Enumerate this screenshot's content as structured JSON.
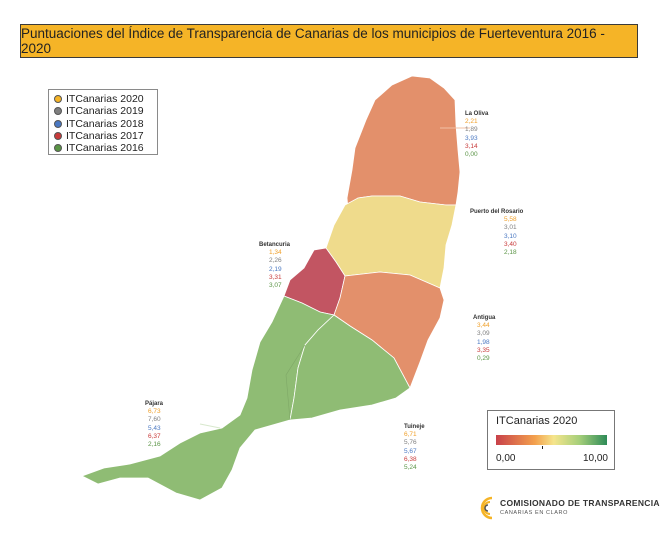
{
  "title": "Puntuaciones del Índice de Transparencia de Canarias de los municipios de Fuerteventura 2016 - 2020",
  "legend": [
    {
      "label": "ITCanarias 2020",
      "color": "#f5b427"
    },
    {
      "label": "ITCanarias 2019",
      "color": "#7f7f7f"
    },
    {
      "label": "ITCanarias 2018",
      "color": "#4a78c2"
    },
    {
      "label": "ITCanarias 2017",
      "color": "#c83a3a"
    },
    {
      "label": "ITCanarias 2016",
      "color": "#5a9445"
    }
  ],
  "series_colors": [
    "#f0a02a",
    "#7f7f7f",
    "#4a78c2",
    "#c83a3a",
    "#5a9445"
  ],
  "municipalities": [
    {
      "name": "La Oliva",
      "values": [
        "2,21",
        "1,89",
        "3,93",
        "3,14",
        "0,00"
      ],
      "fill": "#e3906b"
    },
    {
      "name": "Puerto del Rosario",
      "values": [
        "5,58",
        "3,01",
        "3,10",
        "3,40",
        "2,18"
      ],
      "fill": "#efdb8c"
    },
    {
      "name": "Betancuria",
      "values": [
        "1,34",
        "2,26",
        "2,19",
        "3,31",
        "3,07"
      ],
      "fill": "#c25562"
    },
    {
      "name": "Antigua",
      "values": [
        "3,44",
        "3,09",
        "1,98",
        "3,35",
        "0,29"
      ],
      "fill": "#e3906b"
    },
    {
      "name": "Pájara",
      "values": [
        "6,73",
        "7,60",
        "5,43",
        "6,37",
        "2,16"
      ],
      "fill": "#8fbc74"
    },
    {
      "name": "Tuineje",
      "values": [
        "6,71",
        "5,76",
        "5,67",
        "6,38",
        "5,24"
      ],
      "fill": "#8fbc74"
    }
  ],
  "color_scale": {
    "title": "ITCanarias 2020",
    "min_label": "0,00",
    "max_label": "10,00"
  },
  "logo": {
    "line1": "COMISIONADO DE TRANSPARENCIA",
    "line2": "CANARIAS EN CLARO"
  }
}
